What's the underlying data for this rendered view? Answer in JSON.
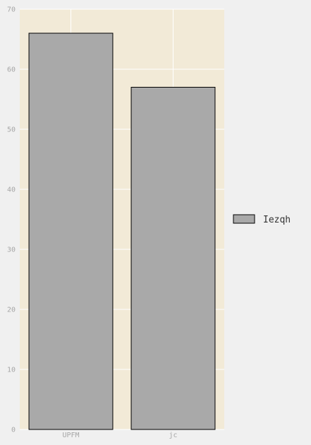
{
  "chart_data": {
    "type": "bar",
    "title": "",
    "xlabel": "",
    "ylabel": "",
    "categories": [
      "UPFM",
      "jc"
    ],
    "series": [
      {
        "name": "Iezqh",
        "values": [
          66,
          57
        ]
      }
    ],
    "ylim": [
      0,
      70
    ],
    "yticks": [
      0,
      10,
      20,
      30,
      40,
      50,
      60,
      70
    ],
    "grid": true,
    "legend_position": "right",
    "colors": {
      "figure_background": "#f0f0f0",
      "plot_background": "#f2ead7",
      "bar_fill": "#a9a9a9",
      "bar_edge": "#000000",
      "grid": "#ffffff",
      "tick_text": "#a6a6a6"
    }
  }
}
